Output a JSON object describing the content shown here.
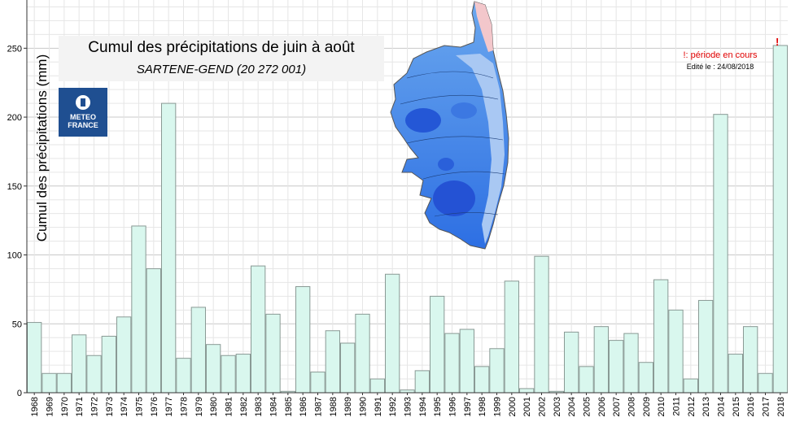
{
  "chart_data": {
    "type": "bar",
    "title": "Cumul des précipitations de juin à août",
    "subtitle": "SARTENE-GEND (20 272 001)",
    "ylabel": "Cumul des précipitations (mm)",
    "xlabel": "",
    "ylim": [
      0,
      285
    ],
    "yticks": [
      0,
      50,
      100,
      150,
      200,
      250
    ],
    "grid": true,
    "categories": [
      "1968",
      "1969",
      "1970",
      "1971",
      "1972",
      "1973",
      "1974",
      "1975",
      "1976",
      "1977",
      "1978",
      "1979",
      "1980",
      "1981",
      "1982",
      "1983",
      "1984",
      "1985",
      "1986",
      "1987",
      "1988",
      "1989",
      "1990",
      "1991",
      "1992",
      "1993",
      "1994",
      "1995",
      "1996",
      "1997",
      "1998",
      "1999",
      "2000",
      "2001",
      "2002",
      "2003",
      "2004",
      "2005",
      "2006",
      "2007",
      "2008",
      "2009",
      "2010",
      "2011",
      "2012",
      "2013",
      "2014",
      "2015",
      "2016",
      "2017",
      "2018"
    ],
    "values": [
      51,
      14,
      14,
      42,
      27,
      41,
      55,
      121,
      90,
      210,
      25,
      62,
      35,
      27,
      28,
      92,
      57,
      1,
      77,
      15,
      45,
      36,
      57,
      10,
      86,
      2,
      16,
      70,
      43,
      46,
      19,
      32,
      81,
      3,
      99,
      1,
      44,
      19,
      48,
      38,
      43,
      22,
      82,
      60,
      10,
      67,
      202,
      28,
      48,
      14,
      252
    ],
    "bar_color": "#d9f7ee",
    "bar_edge_color": "#8a9a95"
  },
  "note_current": "!: période en cours",
  "note_edited": "Edité le : 24/08/2018",
  "current_marker": "!",
  "logo": {
    "line1": "METEO",
    "line2": "FRANCE",
    "color": "#1f4f91"
  },
  "map": {
    "type": "Corsica precipitation contour map"
  }
}
